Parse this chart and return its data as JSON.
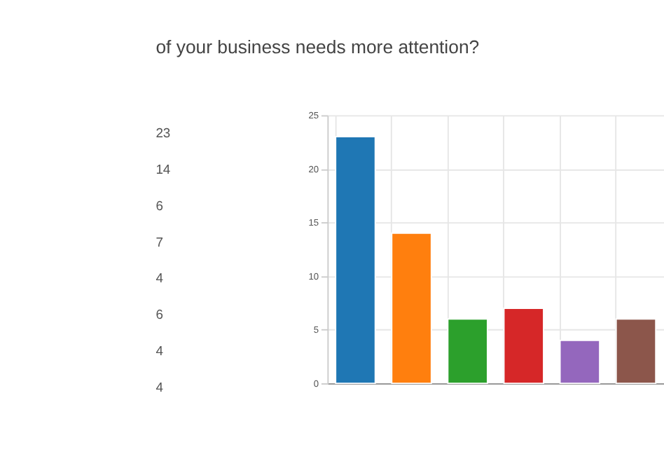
{
  "chart_data": {
    "type": "bar",
    "title": "of your business needs more attention?",
    "categories": [
      null,
      null,
      null,
      null,
      null,
      null
    ],
    "values": [
      23,
      14,
      6,
      7,
      4,
      6
    ],
    "colors": [
      "#1f77b4",
      "#ff7f0e",
      "#2ca02c",
      "#d62728",
      "#9467bd",
      "#8c564b"
    ],
    "ylim": [
      0,
      25
    ],
    "yticks": [
      0,
      5,
      10,
      15,
      20,
      25
    ],
    "grid": true,
    "annotations": [
      "23",
      "14",
      "6",
      "7",
      "4",
      "6",
      "4",
      "4"
    ]
  }
}
